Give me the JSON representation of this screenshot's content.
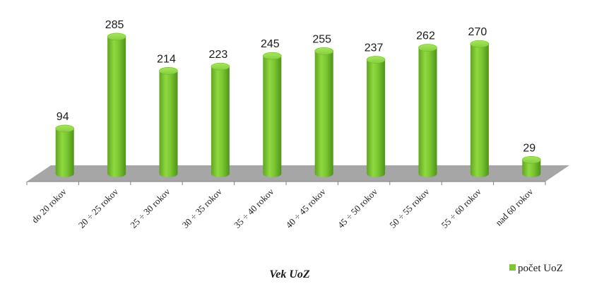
{
  "chart_data": {
    "type": "bar",
    "style": "3d-cylinder",
    "categories": [
      "do 20 rokov",
      "20 ÷ 25 rokov",
      "25 ÷ 30 rokov",
      "30 ÷ 35 rokov",
      "35 ÷ 40 rokov",
      "40 ÷ 45 rokov",
      "45 ÷ 50 rokov",
      "50 ÷ 55 rokov",
      "55 ÷ 60 rokov",
      "nad 60 rokov"
    ],
    "series": [
      {
        "name": "počet UoZ",
        "values": [
          94,
          285,
          214,
          223,
          245,
          255,
          237,
          262,
          270,
          29
        ],
        "color": "#7dc832"
      }
    ],
    "title": "",
    "xlabel": "Vek UoZ",
    "ylabel": "",
    "ylim": [
      0,
      300
    ],
    "grid": false,
    "legend": "bottom-right",
    "floor_color": "#a6a6a6"
  }
}
